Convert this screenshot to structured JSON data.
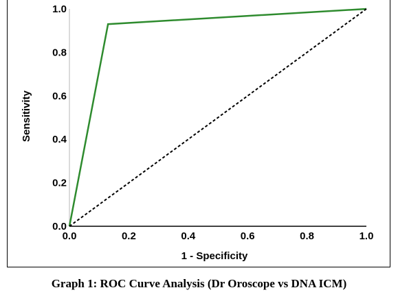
{
  "caption": "Graph 1: ROC Curve Analysis (Dr Oroscope vs DNA ICM)",
  "chart_data": {
    "type": "line",
    "title": "",
    "xlabel": "1 - Specificity",
    "ylabel": "Sensitivity",
    "xlim": [
      0.0,
      1.0
    ],
    "ylim": [
      0.0,
      1.0
    ],
    "x_ticks": [
      "0.0",
      "0.2",
      "0.4",
      "0.6",
      "0.8",
      "1.0"
    ],
    "y_ticks": [
      "0.0",
      "0.2",
      "0.4",
      "0.6",
      "0.8",
      "1.0"
    ],
    "grid": false,
    "legend": "none",
    "series": [
      {
        "style": "solid",
        "color": "#2e8b2e",
        "x": [
          0.0,
          0.13,
          1.0
        ],
        "y": [
          0.0,
          0.93,
          1.0
        ]
      },
      {
        "style": "dashed",
        "color": "#000000",
        "x": [
          0.0,
          1.0
        ],
        "y": [
          0.0,
          1.0
        ]
      }
    ]
  }
}
